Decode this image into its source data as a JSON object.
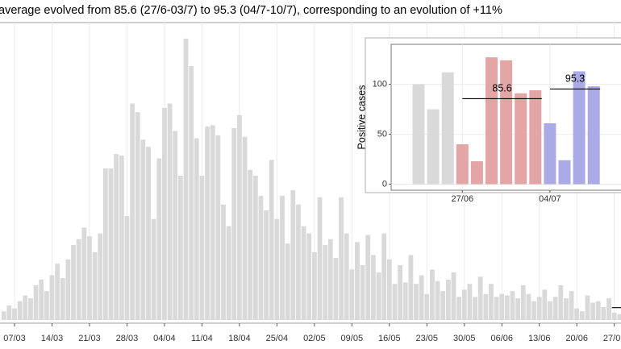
{
  "chart_data": [
    {
      "type": "bar",
      "title": "average evolved from 85.6 (27/6-03/7) to 95.3 (04/7-10/7), corresponding to an evolution of +11%",
      "categories": [
        null,
        null,
        "07/03",
        null,
        null,
        null,
        null,
        null,
        null,
        "14/03",
        null,
        null,
        null,
        null,
        null,
        null,
        "21/03",
        null,
        null,
        null,
        null,
        null,
        null,
        "28/03",
        null,
        null,
        null,
        null,
        null,
        null,
        "04/04",
        null,
        null,
        null,
        null,
        null,
        null,
        "11/04",
        null,
        null,
        null,
        null,
        null,
        null,
        "18/04",
        null,
        null,
        null,
        null,
        null,
        null,
        "25/04",
        null,
        null,
        null,
        null,
        null,
        null,
        "02/05",
        null,
        null,
        null,
        null,
        null,
        null,
        "09/05",
        null,
        null,
        null,
        null,
        null,
        null,
        "16/05",
        null,
        null,
        null,
        null,
        null,
        null,
        "23/05",
        null,
        null,
        null,
        null,
        null,
        null,
        "30/05",
        null,
        null,
        null,
        null,
        null,
        null,
        "06/06",
        null,
        null,
        null,
        null,
        null,
        null,
        "13/06",
        null,
        null,
        null,
        null,
        null,
        null,
        "20/06",
        null,
        null,
        null,
        null,
        null,
        null,
        "27/06",
        null,
        null
      ],
      "values": [
        60,
        100,
        80,
        130,
        170,
        150,
        240,
        280,
        200,
        310,
        390,
        290,
        420,
        520,
        560,
        640,
        580,
        470,
        600,
        1050,
        1050,
        1150,
        1140,
        720,
        1500,
        1440,
        1250,
        1200,
        700,
        1120,
        1470,
        1500,
        1310,
        1000,
        1950,
        1760,
        1260,
        1000,
        1340,
        1350,
        1280,
        800,
        650,
        1330,
        1420,
        1270,
        1040,
        1000,
        860,
        760,
        1110,
        700,
        860,
        530,
        900,
        800,
        650,
        600,
        470,
        850,
        520,
        560,
        430,
        850,
        600,
        350,
        540,
        380,
        590,
        450,
        330,
        600,
        420,
        250,
        380,
        260,
        450,
        250,
        310,
        180,
        350,
        270,
        200,
        280,
        330,
        160,
        210,
        250,
        160,
        300,
        180,
        250,
        160,
        180,
        170,
        200,
        150,
        240,
        180,
        130,
        160,
        210,
        130,
        160,
        240,
        150,
        200,
        80,
        60,
        170,
        120,
        130,
        90,
        150,
        50,
        40,
        120
      ],
      "color": "#d9d9d9",
      "ylim": [
        0,
        2050
      ],
      "grid": true
    },
    {
      "type": "bar",
      "ylabel": "Positive cases",
      "categories": [
        null,
        null,
        null,
        "27/06",
        null,
        null,
        null,
        null,
        null,
        "04/07",
        null,
        null,
        null
      ],
      "values": [
        100,
        75,
        112,
        40,
        23,
        127,
        124,
        91,
        94,
        61,
        24,
        113,
        98
      ],
      "colors": [
        "#d9d9d9",
        "#d9d9d9",
        "#d9d9d9",
        "#e3a5a5",
        "#e3a5a5",
        "#e3a5a5",
        "#e3a5a5",
        "#e3a5a5",
        "#e3a5a5",
        "#aaaae6",
        "#aaaae6",
        "#aaaae6",
        "#aaaae6"
      ],
      "averages": [
        {
          "value": 85.6,
          "color": "#e3a5a5"
        },
        {
          "value": 95.3,
          "color": "#aaaae6"
        }
      ],
      "ylim": [
        -6,
        140
      ],
      "yticks": [
        0,
        50,
        100
      ],
      "grid": true
    }
  ]
}
